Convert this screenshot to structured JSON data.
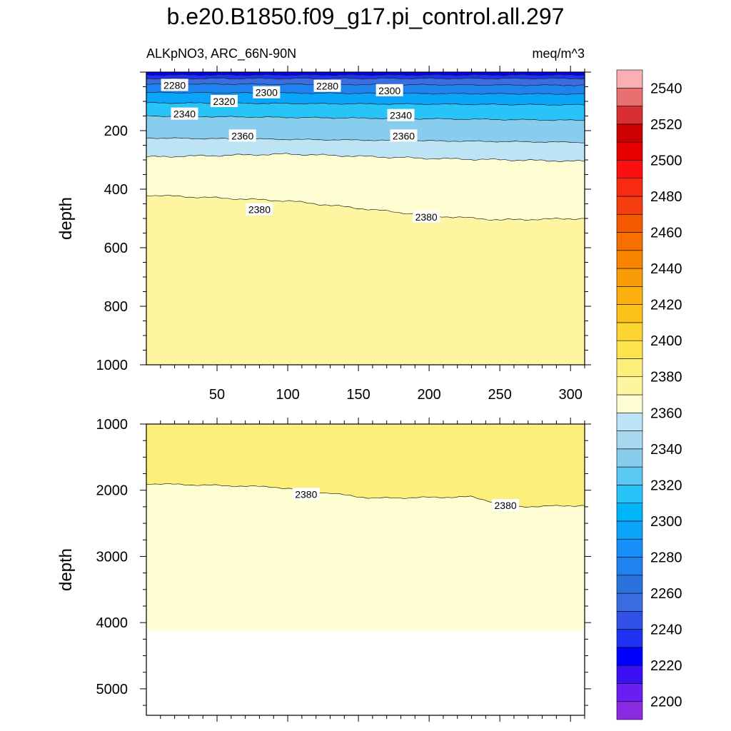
{
  "title": "b.e20.B1850.f09_g17.pi_control.all.297",
  "left_subtitle": "ALKpNO3, ARC_66N-90N",
  "right_subtitle": "meq/m^3",
  "chart_data": [
    {
      "type": "contour",
      "panel": "upper",
      "x_range": [
        0,
        310
      ],
      "y_range": [
        0,
        1000
      ],
      "y_inverted": true,
      "ylabel": "depth",
      "x_ticks": [
        50,
        100,
        150,
        200,
        250,
        300
      ],
      "y_ticks": [
        200,
        400,
        600,
        800,
        1000
      ],
      "isolines": [
        {
          "value": 2240,
          "x": [
            0,
            310
          ],
          "depth": [
            10,
            10
          ]
        },
        {
          "value": 2260,
          "x": [
            0,
            310
          ],
          "depth": [
            22,
            22
          ]
        },
        {
          "value": 2280,
          "x": [
            0,
            310
          ],
          "depth": [
            40,
            45
          ]
        },
        {
          "value": 2300,
          "x": [
            0,
            310
          ],
          "depth": [
            70,
            75
          ]
        },
        {
          "value": 2320,
          "x": [
            0,
            310
          ],
          "depth": [
            105,
            112
          ]
        },
        {
          "value": 2340,
          "x": [
            0,
            310
          ],
          "depth": [
            150,
            165
          ]
        },
        {
          "value": 2360,
          "x": [
            0,
            310
          ],
          "depth": [
            225,
            240
          ]
        },
        {
          "value": 2370,
          "x": [
            0,
            100,
            200,
            310
          ],
          "depth": [
            290,
            280,
            295,
            305
          ]
        },
        {
          "value": 2380,
          "x": [
            0,
            100,
            200,
            250,
            310
          ],
          "depth": [
            420,
            440,
            490,
            505,
            500
          ]
        }
      ],
      "contour_labels": [
        {
          "text": "2280",
          "x": 20,
          "depth": 45
        },
        {
          "text": "2300",
          "x": 85,
          "depth": 70
        },
        {
          "text": "2280",
          "x": 128,
          "depth": 48
        },
        {
          "text": "2300",
          "x": 172,
          "depth": 63
        },
        {
          "text": "2320",
          "x": 55,
          "depth": 100
        },
        {
          "text": "2340",
          "x": 27,
          "depth": 143
        },
        {
          "text": "2340",
          "x": 180,
          "depth": 148
        },
        {
          "text": "2360",
          "x": 68,
          "depth": 218
        },
        {
          "text": "2360",
          "x": 182,
          "depth": 218
        },
        {
          "text": "2380",
          "x": 80,
          "depth": 470
        },
        {
          "text": "2380",
          "x": 198,
          "depth": 495
        }
      ]
    },
    {
      "type": "contour",
      "panel": "lower",
      "x_range": [
        0,
        310
      ],
      "y_range": [
        1000,
        5400
      ],
      "y_inverted": true,
      "ylabel": "depth",
      "y_ticks": [
        1000,
        2000,
        3000,
        4000,
        5000
      ],
      "data_bottom_depth": 4120,
      "isolines": [
        {
          "value": 2380,
          "x": [
            0,
            90,
            160,
            230,
            260,
            310
          ],
          "depth": [
            1900,
            1950,
            2120,
            2100,
            2250,
            2230
          ]
        }
      ],
      "contour_labels": [
        {
          "text": "2380",
          "x": 113,
          "depth": 2060
        },
        {
          "text": "2380",
          "x": 254,
          "depth": 2230
        }
      ]
    }
  ],
  "colorbar": {
    "levels": [
      2200,
      2210,
      2220,
      2230,
      2240,
      2250,
      2260,
      2270,
      2280,
      2290,
      2300,
      2310,
      2320,
      2330,
      2340,
      2350,
      2360,
      2370,
      2380,
      2390,
      2400,
      2410,
      2420,
      2430,
      2440,
      2450,
      2460,
      2470,
      2480,
      2490,
      2500,
      2510,
      2520,
      2530,
      2540,
      2550
    ],
    "tick_labels": [
      "2200",
      "2220",
      "2240",
      "2260",
      "2280",
      "2300",
      "2320",
      "2340",
      "2360",
      "2380",
      "2400",
      "2420",
      "2440",
      "2460",
      "2480",
      "2500",
      "2520",
      "2540"
    ],
    "colors": [
      "#8a2be2",
      "#6a1ef2",
      "#3a10f5",
      "#0000ff",
      "#1e32f0",
      "#3050e8",
      "#3a6ee0",
      "#2a72dc",
      "#1e82f0",
      "#1690f8",
      "#0aa4fa",
      "#00b4f8",
      "#28c4f8",
      "#5ac8f2",
      "#88ccee",
      "#a8d8f0",
      "#bde4f4",
      "#fefed2",
      "#fdf5a0",
      "#fdf07a",
      "#fde44e",
      "#fdd530",
      "#fdc21a",
      "#fbb010",
      "#fa9c08",
      "#f88400",
      "#f67000",
      "#f45800",
      "#f43e10",
      "#f82a10",
      "#fa1010",
      "#e60000",
      "#cc0000",
      "#d83030",
      "#e87070",
      "#f8b0b4"
    ]
  }
}
